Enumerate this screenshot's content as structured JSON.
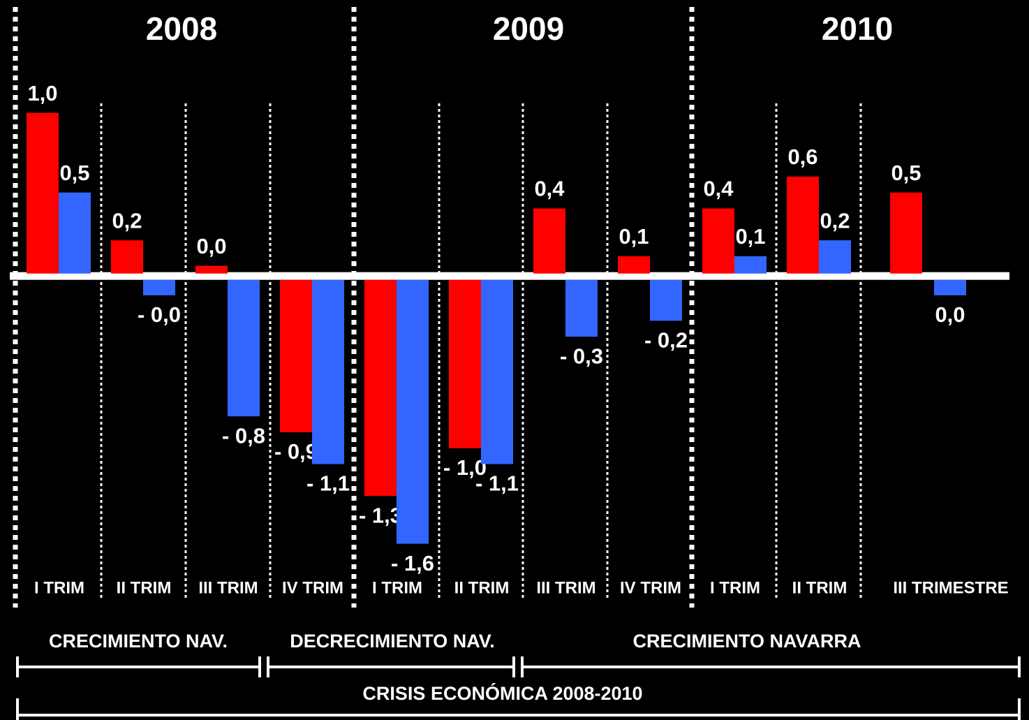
{
  "chart_data": {
    "type": "bar",
    "groups": [
      "2008",
      "2009",
      "2010"
    ],
    "categories": [
      "I TRIM",
      "II TRIM",
      "III TRIM",
      "IV TRIM",
      "I TRIM",
      "II TRIM",
      "III TRIM",
      "IV TRIM",
      "I TRIM",
      "II TRIM",
      "III TRIMESTRE"
    ],
    "series": [
      {
        "color": "#ff0000",
        "values": [
          1.0,
          0.2,
          0.04,
          -0.9,
          -1.3,
          -1.0,
          0.4,
          0.1,
          0.4,
          0.6,
          0.5
        ],
        "value_labels": [
          "1,0",
          "0,2",
          "0,0",
          "- 0,9",
          "- 1,3",
          "- 1,0",
          "0,4",
          "0,1",
          "0,4",
          "0,6",
          "0,5"
        ]
      },
      {
        "color": "#3366ff",
        "values": [
          0.5,
          -0.04,
          -0.8,
          -1.1,
          -1.6,
          -1.1,
          -0.3,
          -0.2,
          0.1,
          0.2,
          -0.04
        ],
        "value_labels": [
          "0,5",
          "- 0,0",
          "- 0,8",
          "- 1,1",
          "- 1,6",
          "- 1,1",
          "- 0,3",
          "- 0,2",
          "0,1",
          "0,2",
          "0,0"
        ]
      }
    ],
    "ylim": [
      -1.9,
      1.7
    ],
    "annotations": [
      "CRECIMIENTO NAV.",
      "DECRECIMIENTO NAV.",
      "CRECIMIENTO NAVARRA",
      "CRISIS ECONÓMICA 2008-2010"
    ]
  }
}
